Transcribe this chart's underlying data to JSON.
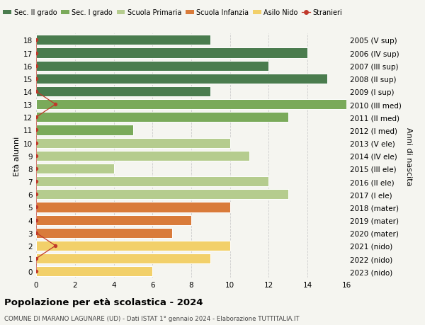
{
  "ages": [
    18,
    17,
    16,
    15,
    14,
    13,
    12,
    11,
    10,
    9,
    8,
    7,
    6,
    5,
    4,
    3,
    2,
    1,
    0
  ],
  "right_labels": [
    "2005 (V sup)",
    "2006 (IV sup)",
    "2007 (III sup)",
    "2008 (II sup)",
    "2009 (I sup)",
    "2010 (III med)",
    "2011 (II med)",
    "2012 (I med)",
    "2013 (V ele)",
    "2014 (IV ele)",
    "2015 (III ele)",
    "2016 (II ele)",
    "2017 (I ele)",
    "2018 (mater)",
    "2019 (mater)",
    "2020 (mater)",
    "2021 (nido)",
    "2022 (nido)",
    "2023 (nido)"
  ],
  "values": [
    9,
    14,
    12,
    15,
    9,
    16,
    13,
    5,
    10,
    11,
    4,
    12,
    13,
    10,
    8,
    7,
    10,
    9,
    6
  ],
  "colors": [
    "#4a7c4e",
    "#4a7c4e",
    "#4a7c4e",
    "#4a7c4e",
    "#4a7c4e",
    "#7aaa5a",
    "#7aaa5a",
    "#7aaa5a",
    "#b5cc8e",
    "#b5cc8e",
    "#b5cc8e",
    "#b5cc8e",
    "#b5cc8e",
    "#d97b3a",
    "#d97b3a",
    "#d97b3a",
    "#f2d06a",
    "#f2d06a",
    "#f2d06a"
  ],
  "stranieri_ages": [
    18,
    17,
    16,
    15,
    14,
    13,
    12,
    11,
    10,
    9,
    8,
    7,
    6,
    5,
    4,
    3,
    2,
    1,
    0
  ],
  "stranieri_x": [
    0,
    0,
    0,
    0,
    0,
    1,
    0,
    0,
    0,
    0,
    0,
    0,
    0,
    0,
    0,
    0,
    1,
    0,
    0
  ],
  "legend_labels": [
    "Sec. II grado",
    "Sec. I grado",
    "Scuola Primaria",
    "Scuola Infanzia",
    "Asilo Nido",
    "Stranieri"
  ],
  "legend_colors": [
    "#4a7c4e",
    "#7aaa5a",
    "#b5cc8e",
    "#d97b3a",
    "#f2d06a",
    "#c0392b"
  ],
  "title": "Popolazione per età scolastica - 2024",
  "subtitle": "COMUNE DI MARANO LAGUNARE (UD) - Dati ISTAT 1° gennaio 2024 - Elaborazione TUTTITALIA.IT",
  "ylabel_left": "Età alunni",
  "ylabel_right": "Anni di nascita",
  "xlim": [
    0,
    16
  ],
  "ylim": [
    -0.5,
    18.5
  ],
  "xticks": [
    0,
    2,
    4,
    6,
    8,
    10,
    12,
    14,
    16
  ],
  "bar_height": 0.78,
  "background_color": "#f5f5f0",
  "grid_color": "#cccccc",
  "stranieri_color": "#c0392b"
}
